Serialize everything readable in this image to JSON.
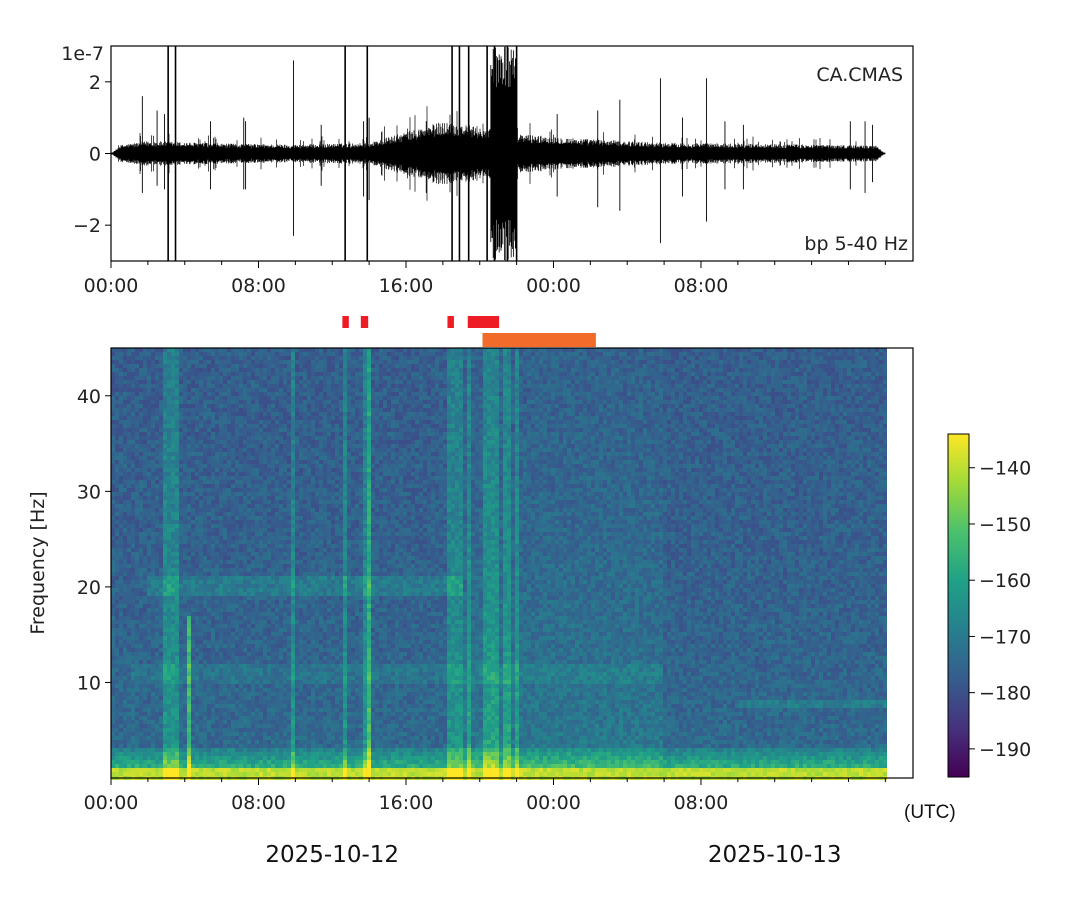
{
  "chart_data": [
    {
      "type": "line",
      "name": "waveform",
      "station": "CA.CMAS",
      "filter_label": "bp 5-40 Hz",
      "y_offset_label": "1e-7",
      "ylim": [
        -3,
        3
      ],
      "yticks": [
        -2,
        0,
        2
      ],
      "ytick_labels": [
        "−2",
        "0",
        "2"
      ],
      "x_hours_range": [
        0,
        43.5
      ],
      "data_end_hour": 42,
      "xticks_hours": [
        0,
        8,
        16,
        24,
        32
      ],
      "xtick_labels": [
        "00:00",
        "08:00",
        "16:00",
        "00:00",
        "08:00"
      ],
      "envelope": [
        {
          "t": 0.0,
          "amp": 0.2
        },
        {
          "t": 2.0,
          "amp": 0.35
        },
        {
          "t": 6.0,
          "amp": 0.28
        },
        {
          "t": 10.0,
          "amp": 0.25
        },
        {
          "t": 14.0,
          "amp": 0.3
        },
        {
          "t": 16.0,
          "amp": 0.6
        },
        {
          "t": 18.0,
          "amp": 0.9
        },
        {
          "t": 20.0,
          "amp": 0.75
        },
        {
          "t": 22.0,
          "amp": 0.55
        },
        {
          "t": 26.0,
          "amp": 0.4
        },
        {
          "t": 30.0,
          "amp": 0.3
        },
        {
          "t": 34.0,
          "amp": 0.28
        },
        {
          "t": 38.0,
          "amp": 0.25
        },
        {
          "t": 42.0,
          "amp": 0.22
        }
      ],
      "spikes": [
        {
          "t": 1.7,
          "min": -1.1,
          "max": 1.6
        },
        {
          "t": 2.5,
          "min": -0.9,
          "max": 1.2
        },
        {
          "t": 2.9,
          "min": -1.0,
          "max": 1.1
        },
        {
          "t": 3.1,
          "min": -3.0,
          "max": 3.0
        },
        {
          "t": 3.5,
          "min": -1.2,
          "max": 0.8
        },
        {
          "t": 3.5,
          "min": -1.4,
          "max": 0.5
        },
        {
          "t": 3.5,
          "min": -3.0,
          "max": 3.0
        },
        {
          "t": 5.4,
          "min": -1.0,
          "max": 0.9
        },
        {
          "t": 7.2,
          "min": -1.0,
          "max": 1.0
        },
        {
          "t": 7.3,
          "min": -1.0,
          "max": 0.9
        },
        {
          "t": 9.9,
          "min": -2.3,
          "max": 2.6
        },
        {
          "t": 11.4,
          "min": -0.9,
          "max": 0.8
        },
        {
          "t": 12.7,
          "min": -3.0,
          "max": 3.0
        },
        {
          "t": 13.7,
          "min": -1.2,
          "max": 0.9
        },
        {
          "t": 13.9,
          "min": -3.0,
          "max": 3.0
        },
        {
          "t": 14.0,
          "min": -1.3,
          "max": 1.0
        },
        {
          "t": 17.1,
          "min": -1.1,
          "max": 0.9
        },
        {
          "t": 18.5,
          "min": -3.0,
          "max": 3.0
        },
        {
          "t": 18.9,
          "min": -3.0,
          "max": 3.0
        },
        {
          "t": 19.4,
          "min": -3.0,
          "max": 3.0
        },
        {
          "t": 20.4,
          "min": -3.0,
          "max": 3.0
        },
        {
          "t": 20.8,
          "min": -3.0,
          "max": 3.0
        },
        {
          "t": 21.5,
          "min": -3.0,
          "max": 3.0
        },
        {
          "t": 22.0,
          "min": -3.0,
          "max": 3.0
        },
        {
          "t": 24.2,
          "min": -1.2,
          "max": 1.1
        },
        {
          "t": 26.4,
          "min": -1.5,
          "max": 1.2
        },
        {
          "t": 27.6,
          "min": -1.6,
          "max": 1.5
        },
        {
          "t": 29.8,
          "min": -2.5,
          "max": 2.1
        },
        {
          "t": 31.0,
          "min": -1.2,
          "max": 1.0
        },
        {
          "t": 32.3,
          "min": -1.9,
          "max": 2.1
        },
        {
          "t": 33.3,
          "min": -1.0,
          "max": 0.9
        },
        {
          "t": 34.3,
          "min": -1.0,
          "max": 0.8
        },
        {
          "t": 40.1,
          "min": -1.0,
          "max": 0.9
        },
        {
          "t": 40.9,
          "min": -1.1,
          "max": 0.9
        },
        {
          "t": 41.3,
          "min": -0.8,
          "max": 0.8
        }
      ],
      "burst": {
        "t_start": 20.6,
        "t_end": 22.0,
        "amp": 3.0
      }
    },
    {
      "type": "heatmap",
      "name": "spectrogram",
      "ylabel": "Frequency [Hz]",
      "ylim": [
        0,
        45
      ],
      "yticks": [
        10,
        20,
        30,
        40
      ],
      "x_hours_range": [
        0,
        43.5
      ],
      "data_end_hour": 42,
      "xticks_hours": [
        0,
        8,
        16,
        24,
        32
      ],
      "xtick_labels": [
        "00:00",
        "08:00",
        "16:00",
        "00:00",
        "08:00"
      ],
      "date_labels": [
        {
          "t": 12,
          "label": "2025-10-12"
        },
        {
          "t": 36,
          "label": "2025-10-13"
        }
      ],
      "timezone_label": "(UTC)",
      "colorbar": {
        "range": [
          -195,
          -134
        ],
        "ticks": [
          -140,
          -150,
          -160,
          -170,
          -180,
          -190
        ],
        "tick_labels": [
          "−140",
          "−150",
          "−160",
          "−170",
          "−180",
          "−190"
        ],
        "colormap": [
          "#440154",
          "#46327e",
          "#365c8d",
          "#277f8e",
          "#1fa187",
          "#4ac16d",
          "#a0da39",
          "#fde725"
        ]
      },
      "event_markers_red": [
        {
          "t_start": 12.55,
          "t_end": 12.9
        },
        {
          "t_start": 13.55,
          "t_end": 13.95
        },
        {
          "t_start": 18.25,
          "t_end": 18.6
        },
        {
          "t_start": 19.35,
          "t_end": 21.05
        }
      ],
      "event_marker_orange": {
        "t_start": 20.15,
        "t_end": 26.3
      },
      "marker_colors": {
        "red": "#ee1c25",
        "orange": "#f26b2a"
      }
    }
  ]
}
